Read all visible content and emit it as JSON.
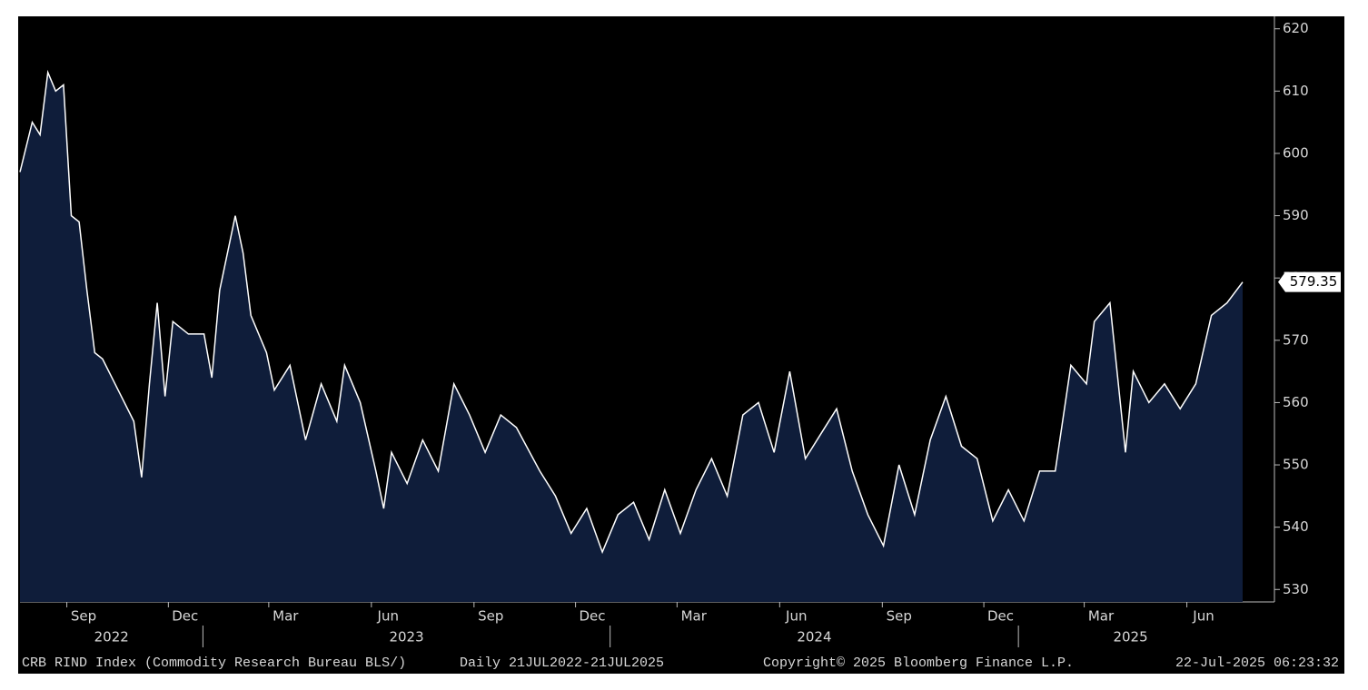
{
  "chart_data": {
    "type": "area",
    "title": "CRB RIND Index (Commodity Research Bureau BLS/)",
    "subtitle": "Daily 21JUL2022-21JUL2025",
    "copyright": "Copyright© 2025 Bloomberg Finance L.P.",
    "timestamp": "22-Jul-2025 06:23:32",
    "xlim": [
      "2022-07-21",
      "2025-07-21"
    ],
    "ylim": [
      528,
      622
    ],
    "yticks": [
      530,
      540,
      550,
      560,
      570,
      580,
      590,
      600,
      610,
      620
    ],
    "xticks": [
      {
        "value": "2022-09-01",
        "label": "Sep"
      },
      {
        "value": "2022-12-01",
        "label": "Dec"
      },
      {
        "value": "2023-03-01",
        "label": "Mar"
      },
      {
        "value": "2023-06-01",
        "label": "Jun"
      },
      {
        "value": "2023-09-01",
        "label": "Sep"
      },
      {
        "value": "2023-12-01",
        "label": "Dec"
      },
      {
        "value": "2024-03-01",
        "label": "Mar"
      },
      {
        "value": "2024-06-01",
        "label": "Jun"
      },
      {
        "value": "2024-09-01",
        "label": "Sep"
      },
      {
        "value": "2024-12-01",
        "label": "Dec"
      },
      {
        "value": "2025-03-01",
        "label": "Mar"
      },
      {
        "value": "2025-06-01",
        "label": "Jun"
      }
    ],
    "years": [
      2022,
      2023,
      2024,
      2025
    ],
    "grid": false,
    "series": [
      {
        "name": "CRB RIND Index",
        "color": "#ffffff",
        "fill": "#0f1d3a",
        "last_value_label": "579.35",
        "x": [
          "2022-07-21",
          "2022-08-01",
          "2022-08-08",
          "2022-08-15",
          "2022-08-22",
          "2022-08-29",
          "2022-09-05",
          "2022-09-12",
          "2022-09-19",
          "2022-09-26",
          "2022-10-03",
          "2022-10-17",
          "2022-10-31",
          "2022-11-07",
          "2022-11-14",
          "2022-11-21",
          "2022-11-28",
          "2022-12-05",
          "2022-12-19",
          "2023-01-02",
          "2023-01-09",
          "2023-01-16",
          "2023-01-30",
          "2023-02-06",
          "2023-02-13",
          "2023-02-27",
          "2023-03-06",
          "2023-03-20",
          "2023-04-03",
          "2023-04-17",
          "2023-05-01",
          "2023-05-08",
          "2023-05-22",
          "2023-06-05",
          "2023-06-12",
          "2023-06-19",
          "2023-07-03",
          "2023-07-17",
          "2023-07-31",
          "2023-08-14",
          "2023-08-28",
          "2023-09-11",
          "2023-09-25",
          "2023-10-09",
          "2023-10-30",
          "2023-11-13",
          "2023-11-27",
          "2023-12-11",
          "2023-12-25",
          "2024-01-08",
          "2024-01-22",
          "2024-02-05",
          "2024-02-19",
          "2024-03-04",
          "2024-03-18",
          "2024-04-01",
          "2024-04-15",
          "2024-04-29",
          "2024-05-13",
          "2024-05-27",
          "2024-06-10",
          "2024-06-24",
          "2024-07-08",
          "2024-07-22",
          "2024-08-05",
          "2024-08-19",
          "2024-09-02",
          "2024-09-16",
          "2024-09-30",
          "2024-10-14",
          "2024-10-28",
          "2024-11-11",
          "2024-11-25",
          "2024-12-09",
          "2024-12-23",
          "2025-01-06",
          "2025-01-20",
          "2025-02-03",
          "2025-02-17",
          "2025-03-03",
          "2025-03-10",
          "2025-03-24",
          "2025-04-07",
          "2025-04-14",
          "2025-04-28",
          "2025-05-12",
          "2025-05-26",
          "2025-06-09",
          "2025-06-23",
          "2025-07-07",
          "2025-07-21"
        ],
        "values": [
          597,
          605,
          603,
          613,
          610,
          611,
          590,
          589,
          578,
          568,
          567,
          562,
          557,
          548,
          563,
          576,
          561,
          573,
          571,
          571,
          564,
          578,
          590,
          584,
          574,
          568,
          562,
          566,
          554,
          563,
          557,
          566,
          560,
          549,
          543,
          552,
          547,
          554,
          549,
          563,
          558,
          552,
          558,
          556,
          549,
          545,
          539,
          543,
          536,
          542,
          544,
          538,
          546,
          539,
          546,
          551,
          545,
          558,
          560,
          552,
          565,
          551,
          555,
          559,
          549,
          542,
          537,
          550,
          542,
          554,
          561,
          553,
          551,
          541,
          546,
          541,
          549,
          549,
          566,
          563,
          573,
          576,
          552,
          565,
          560,
          563,
          559,
          563,
          574,
          576,
          579.35
        ]
      }
    ]
  }
}
